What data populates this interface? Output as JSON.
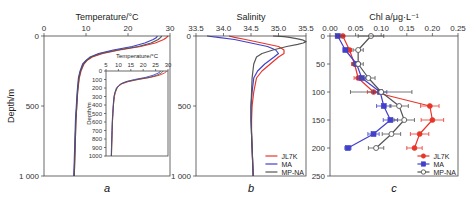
{
  "chart_data": [
    {
      "type": "line",
      "title": "a",
      "xlabel": "Temperature/°C",
      "ylabel": "Depth/m",
      "xlim": [
        0,
        30
      ],
      "xticks": [
        0,
        10,
        20,
        30
      ],
      "ylim": [
        1000,
        0
      ],
      "yticks": [
        0,
        500,
        {
          "value": 1000,
          "label": "1 000"
        }
      ],
      "series": [
        {
          "color": "#e8352a",
          "values": [
            29.5,
            29.2,
            28.5,
            26.5,
            23.0,
            18.0,
            14.0,
            11.5,
            10.2,
            9.5,
            8.8,
            8.4,
            8.0,
            7.8,
            7.6,
            7.5,
            7.4,
            7.3,
            7.2
          ],
          "y": [
            0,
            10,
            25,
            50,
            75,
            100,
            125,
            150,
            175,
            200,
            250,
            300,
            400,
            500,
            600,
            700,
            800,
            900,
            1000
          ]
        },
        {
          "color": "#4040cc",
          "values": [
            27.0,
            26.8,
            26.0,
            24.0,
            21.0,
            16.5,
            13.0,
            11.0,
            10.0,
            9.2,
            8.6,
            8.2,
            7.9,
            7.7,
            7.5,
            7.4,
            7.3,
            7.2,
            7.1
          ],
          "y": [
            0,
            10,
            25,
            50,
            75,
            100,
            125,
            150,
            175,
            200,
            250,
            300,
            400,
            500,
            600,
            700,
            800,
            900,
            1000
          ]
        },
        {
          "color": "#555555",
          "values": [
            28.0,
            27.8,
            27.2,
            25.5,
            22.5,
            17.5,
            13.5,
            11.2,
            10.1,
            9.4,
            8.7,
            8.3,
            8.0,
            7.8,
            7.6,
            7.5,
            7.4,
            7.3,
            7.2
          ],
          "y": [
            0,
            10,
            25,
            50,
            75,
            100,
            125,
            150,
            175,
            200,
            250,
            300,
            400,
            500,
            600,
            700,
            800,
            900,
            1000
          ]
        }
      ]
    },
    {
      "type": "line",
      "xlabel": "Temperature/°C",
      "ylabel": "Depth/m",
      "xlim": [
        5,
        30
      ],
      "xticks": [
        5,
        10,
        15,
        20,
        25,
        30
      ],
      "ylim": [
        1000,
        0
      ],
      "yticks": [
        0,
        100,
        200,
        300,
        400,
        500,
        600,
        700,
        800,
        900,
        1000
      ],
      "series": [
        {
          "color": "#e8352a",
          "values": [
            29.5,
            29.2,
            28.5,
            26.5,
            23.0,
            18.0,
            14.0,
            11.5,
            10.2,
            9.5,
            8.8,
            8.4,
            8.0,
            7.8,
            7.6,
            7.5,
            7.4,
            7.3,
            7.2
          ],
          "y": [
            0,
            10,
            25,
            50,
            75,
            100,
            125,
            150,
            175,
            200,
            250,
            300,
            400,
            500,
            600,
            700,
            800,
            900,
            1000
          ]
        },
        {
          "color": "#4040cc",
          "values": [
            27.0,
            26.8,
            26.0,
            24.0,
            21.0,
            16.5,
            13.0,
            11.0,
            10.0,
            9.2,
            8.6,
            8.2,
            7.9,
            7.7,
            7.5,
            7.4,
            7.3,
            7.2,
            7.1
          ],
          "y": [
            0,
            10,
            25,
            50,
            75,
            100,
            125,
            150,
            175,
            200,
            250,
            300,
            400,
            500,
            600,
            700,
            800,
            900,
            1000
          ]
        },
        {
          "color": "#555555",
          "values": [
            28.0,
            27.8,
            27.2,
            25.5,
            22.5,
            17.5,
            13.5,
            11.2,
            10.1,
            9.4,
            8.7,
            8.3,
            8.0,
            7.8,
            7.6,
            7.5,
            7.4,
            7.3,
            7.2
          ],
          "y": [
            0,
            10,
            25,
            50,
            75,
            100,
            125,
            150,
            175,
            200,
            250,
            300,
            400,
            500,
            600,
            700,
            800,
            900,
            1000
          ]
        }
      ]
    },
    {
      "type": "line",
      "title": "b",
      "xlabel": "Salinity",
      "xlim": [
        33.5,
        35.5
      ],
      "xticks": [
        33.5,
        {
          "value": 34.0,
          "label": "34.0"
        },
        34.5,
        {
          "value": 35.0,
          "label": "35.0"
        },
        35.5
      ],
      "ylim": [
        1000,
        0
      ],
      "yticks": [
        0,
        500,
        {
          "value": 1000,
          "label": "1 000"
        }
      ],
      "legend": "lower right",
      "series": [
        {
          "name": "JL7K",
          "color": "#e8352a",
          "values": [
            34.1,
            34.2,
            34.4,
            34.7,
            35.0,
            35.1,
            35.1,
            35.0,
            34.85,
            34.7,
            34.6,
            34.55,
            34.52,
            34.51,
            34.51,
            34.52,
            34.53,
            34.54
          ],
          "y": [
            0,
            10,
            25,
            50,
            75,
            100,
            125,
            150,
            200,
            250,
            300,
            400,
            500,
            600,
            700,
            800,
            900,
            1000
          ]
        },
        {
          "name": "MA",
          "color": "#4040cc",
          "values": [
            33.7,
            33.9,
            34.2,
            34.5,
            34.8,
            34.95,
            35.0,
            34.92,
            34.75,
            34.62,
            34.55,
            34.52,
            34.5,
            34.5,
            34.51,
            34.52,
            34.53,
            34.54
          ],
          "y": [
            0,
            10,
            25,
            50,
            75,
            100,
            125,
            150,
            200,
            250,
            300,
            400,
            500,
            600,
            700,
            800,
            900,
            1000
          ]
        },
        {
          "name": "MP-NA",
          "color": "#555555",
          "values": [
            34.9,
            35.1,
            35.2,
            35.35,
            35.45,
            35.5,
            35.45,
            35.35,
            35.15,
            34.9,
            34.7,
            34.6,
            34.55,
            34.52,
            34.51,
            34.5,
            34.5,
            34.51,
            34.52,
            34.53,
            34.54
          ],
          "y": [
            0,
            5,
            10,
            20,
            30,
            40,
            50,
            60,
            75,
            100,
            125,
            150,
            200,
            300,
            400,
            500,
            600,
            700,
            800,
            900,
            1000
          ]
        }
      ]
    },
    {
      "type": "line",
      "title": "c",
      "xlabel": "Chl a/μg·L⁻¹",
      "xlim": [
        0,
        0.25
      ],
      "xticks": [
        {
          "value": 0,
          "label": "0.00"
        },
        0.05,
        {
          "value": 0.1,
          "label": "0.10"
        },
        0.15,
        {
          "value": 0.2,
          "label": "0.20"
        },
        0.25
      ],
      "ylim": [
        250,
        0
      ],
      "yticks": [
        0,
        50,
        100,
        150,
        200,
        250
      ],
      "legend": "lower right",
      "series": [
        {
          "name": "JL7K",
          "color": "#e8352a",
          "marker": "circle",
          "values": [
            0.025,
            0.038,
            0.048,
            0.055,
            0.085,
            0.195,
            0.2,
            0.175,
            0.165
          ],
          "errors": [
            0.003,
            0.004,
            0.006,
            0.008,
            0.012,
            0.018,
            0.022,
            0.018,
            0.015
          ],
          "y": [
            0,
            25,
            50,
            75,
            100,
            125,
            150,
            175,
            200
          ]
        },
        {
          "name": "MA",
          "color": "#4040cc",
          "marker": "square",
          "values": [
            0.015,
            0.03,
            0.052,
            0.062,
            0.098,
            0.105,
            0.118,
            0.085,
            0.035
          ],
          "errors": [
            0.003,
            0.004,
            0.007,
            0.008,
            0.013,
            0.014,
            0.014,
            0.011,
            0.006
          ],
          "y": [
            0,
            25,
            50,
            75,
            100,
            125,
            150,
            175,
            200
          ]
        },
        {
          "name": "MP-NA",
          "color": "#555555",
          "marker": "open-circle",
          "values": [
            0.08,
            0.055,
            0.055,
            0.075,
            0.1,
            0.135,
            0.145,
            0.12,
            0.09
          ],
          "errors": [
            0.025,
            0.01,
            0.01,
            0.013,
            0.06,
            0.018,
            0.02,
            0.018,
            0.015
          ],
          "y": [
            0,
            25,
            50,
            75,
            100,
            125,
            150,
            175,
            200
          ]
        }
      ]
    }
  ]
}
